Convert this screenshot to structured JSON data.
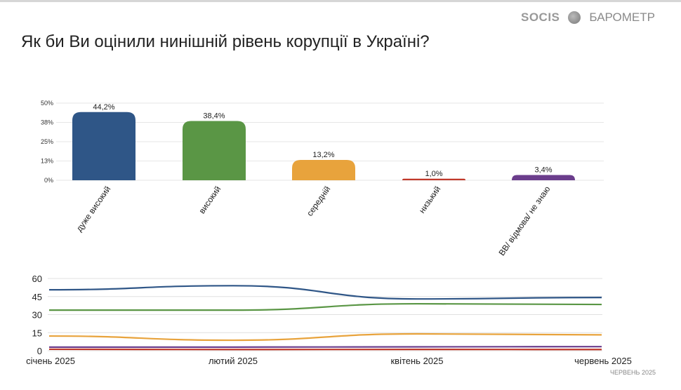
{
  "header": {
    "title": "Як би Ви оцінили нинішній рівень корупції в Україні?",
    "brand_logo": "SOCIS",
    "brand_label": "БАРОМЕТР",
    "footer": "ЧЕРВЕНЬ 2025"
  },
  "chart_data": [
    {
      "type": "bar",
      "categories": [
        "дуже високий",
        "високий",
        "середній",
        "низький",
        "ВВ/ відмова/ не знаю"
      ],
      "values": [
        44.2,
        38.4,
        13.2,
        1.0,
        3.4
      ],
      "data_labels": [
        "44,2%",
        "38,4%",
        "13,2%",
        "1,0%",
        "3,4%"
      ],
      "colors": [
        "#2f5687",
        "#5a9645",
        "#e8a33c",
        "#c0392b",
        "#6b3d8c"
      ],
      "yticks": [
        "0%",
        "13%",
        "25%",
        "38%",
        "50%"
      ],
      "ylim": [
        0,
        50
      ],
      "grid": true
    },
    {
      "type": "line",
      "x": [
        "січень 2025",
        "лютий 2025",
        "квітень 2025",
        "червень 2025"
      ],
      "yticks": [
        "0",
        "15",
        "30",
        "45",
        "60"
      ],
      "ylim": [
        0,
        60
      ],
      "grid": true,
      "series": [
        {
          "color": "#2f5687",
          "values": [
            50.6,
            54,
            43,
            44.2
          ]
        },
        {
          "color": "#5a9645",
          "values": [
            33.7,
            33.7,
            39,
            38.4
          ]
        },
        {
          "color": "#e8a33c",
          "values": [
            12.2,
            8.7,
            14,
            13.2
          ]
        },
        {
          "color": "#6b3d8c",
          "values": [
            3,
            3,
            3.2,
            3.4
          ]
        },
        {
          "color": "#c0392b",
          "values": [
            1.2,
            1,
            1.1,
            1.0
          ]
        }
      ]
    }
  ]
}
